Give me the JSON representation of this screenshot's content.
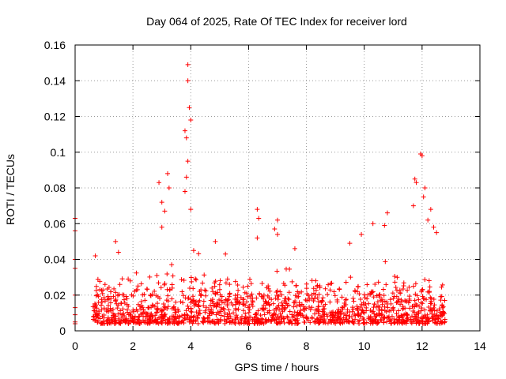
{
  "chart_data": {
    "type": "scatter",
    "title": "Day 064 of 2025, Rate Of TEC Index for receiver lord",
    "xlabel": "GPS time / hours",
    "ylabel": "ROTI / TECUs",
    "xlim": [
      0,
      14
    ],
    "ylim": [
      0,
      0.16
    ],
    "x_ticks": [
      "0",
      "2",
      "4",
      "6",
      "8",
      "10",
      "12",
      "14"
    ],
    "y_ticks": [
      "0",
      "0.02",
      "0.04",
      "0.06",
      "0.08",
      "0.1",
      "0.12",
      "0.14",
      "0.16"
    ],
    "grid": true,
    "marker": "+",
    "series_color": "#ff0000",
    "data_coverage_hours": [
      0.6,
      12.8
    ],
    "notable_points": [
      {
        "x": 0.0,
        "y": 0.063
      },
      {
        "x": 0.0,
        "y": 0.056
      },
      {
        "x": 0.0,
        "y": 0.04
      },
      {
        "x": 0.0,
        "y": 0.035
      },
      {
        "x": 0.0,
        "y": 0.02
      },
      {
        "x": 0.0,
        "y": 0.013
      },
      {
        "x": 0.0,
        "y": 0.009
      },
      {
        "x": 0.0,
        "y": 0.005
      },
      {
        "x": 0.0,
        "y": 0.004
      },
      {
        "x": 0.7,
        "y": 0.042
      },
      {
        "x": 1.4,
        "y": 0.05
      },
      {
        "x": 1.5,
        "y": 0.044
      },
      {
        "x": 2.9,
        "y": 0.083
      },
      {
        "x": 3.0,
        "y": 0.072
      },
      {
        "x": 3.1,
        "y": 0.067
      },
      {
        "x": 3.2,
        "y": 0.088
      },
      {
        "x": 3.25,
        "y": 0.08
      },
      {
        "x": 3.0,
        "y": 0.058
      },
      {
        "x": 3.8,
        "y": 0.112
      },
      {
        "x": 3.85,
        "y": 0.108
      },
      {
        "x": 3.9,
        "y": 0.095
      },
      {
        "x": 3.9,
        "y": 0.149
      },
      {
        "x": 3.9,
        "y": 0.14
      },
      {
        "x": 3.95,
        "y": 0.125
      },
      {
        "x": 4.0,
        "y": 0.118
      },
      {
        "x": 3.85,
        "y": 0.086
      },
      {
        "x": 3.8,
        "y": 0.078
      },
      {
        "x": 4.0,
        "y": 0.068
      },
      {
        "x": 4.1,
        "y": 0.045
      },
      {
        "x": 4.85,
        "y": 0.05
      },
      {
        "x": 5.2,
        "y": 0.043
      },
      {
        "x": 6.3,
        "y": 0.068
      },
      {
        "x": 6.35,
        "y": 0.063
      },
      {
        "x": 6.3,
        "y": 0.052
      },
      {
        "x": 7.0,
        "y": 0.062
      },
      {
        "x": 6.9,
        "y": 0.057
      },
      {
        "x": 7.0,
        "y": 0.054
      },
      {
        "x": 7.6,
        "y": 0.046
      },
      {
        "x": 9.5,
        "y": 0.049
      },
      {
        "x": 9.9,
        "y": 0.054
      },
      {
        "x": 10.3,
        "y": 0.06
      },
      {
        "x": 10.8,
        "y": 0.066
      },
      {
        "x": 10.7,
        "y": 0.059
      },
      {
        "x": 11.7,
        "y": 0.07
      },
      {
        "x": 11.75,
        "y": 0.085
      },
      {
        "x": 11.8,
        "y": 0.083
      },
      {
        "x": 11.95,
        "y": 0.099
      },
      {
        "x": 12.0,
        "y": 0.098
      },
      {
        "x": 12.05,
        "y": 0.075
      },
      {
        "x": 12.1,
        "y": 0.08
      },
      {
        "x": 12.3,
        "y": 0.068
      },
      {
        "x": 12.4,
        "y": 0.058
      },
      {
        "x": 12.5,
        "y": 0.055
      },
      {
        "x": 12.2,
        "y": 0.062
      }
    ]
  }
}
